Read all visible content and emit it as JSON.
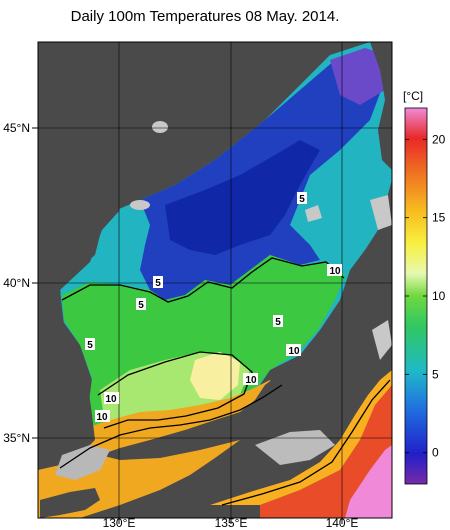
{
  "title": "Daily 100m Temperatures 08 May. 2014.",
  "lat_labels": [
    "45°N",
    "40°N",
    "35°N"
  ],
  "lon_labels": [
    "130°E",
    "135°E",
    "140°E"
  ],
  "contour_labels": [
    "5",
    "5",
    "5",
    "5",
    "5",
    "10",
    "10",
    "10",
    "10",
    "10"
  ],
  "colorbar": {
    "unit": "[°C]",
    "ticks": [
      "20",
      "15",
      "10",
      "5",
      "0"
    ],
    "tick_values": [
      20,
      15,
      10,
      5,
      0
    ],
    "range": [
      -2,
      22
    ]
  },
  "colors": {
    "land": "#4a4a4a",
    "ice_or_nodata": "#c8c8c8",
    "cold": "#1a3cc8",
    "cool": "#18a8c8",
    "mild": "#3cc83c",
    "warm": "#f0d820",
    "hot": "#e83c28"
  }
}
